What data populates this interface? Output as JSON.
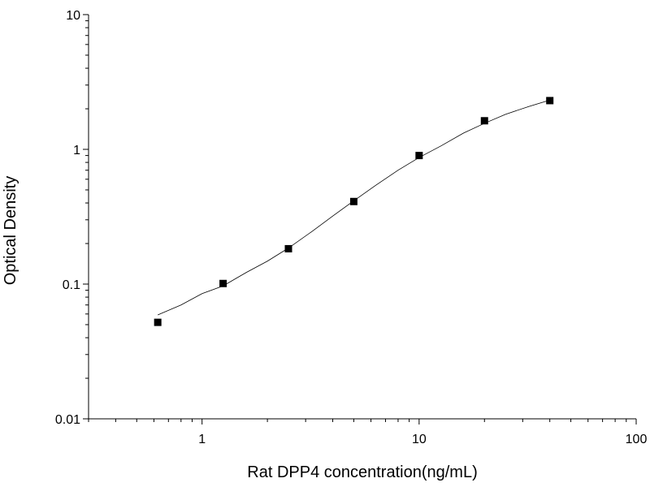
{
  "chart_data": {
    "type": "scatter",
    "title": "",
    "xlabel": "Rat DPP4 concentration(ng/mL)",
    "ylabel": "Optical Density",
    "xscale": "log",
    "yscale": "log",
    "xlim": [
      0.3,
      100
    ],
    "ylim": [
      0.01,
      10
    ],
    "x_ticks": [
      {
        "value": 1,
        "label": "1"
      },
      {
        "value": 10,
        "label": "10"
      },
      {
        "value": 100,
        "label": "100"
      }
    ],
    "y_ticks": [
      {
        "value": 0.01,
        "label": "0.01"
      },
      {
        "value": 0.1,
        "label": "0.1"
      },
      {
        "value": 1,
        "label": "1"
      },
      {
        "value": 10,
        "label": "10"
      }
    ],
    "grid": false,
    "series": [
      {
        "marker": "square",
        "color": "#000000",
        "points": [
          {
            "x": 0.625,
            "y": 0.052
          },
          {
            "x": 1.25,
            "y": 0.101
          },
          {
            "x": 2.5,
            "y": 0.183
          },
          {
            "x": 5,
            "y": 0.41
          },
          {
            "x": 10,
            "y": 0.9
          },
          {
            "x": 20,
            "y": 1.63
          },
          {
            "x": 40,
            "y": 2.3
          }
        ]
      }
    ],
    "fit_curve": {
      "color": "#000000",
      "points": [
        {
          "x": 0.625,
          "y": 0.059
        },
        {
          "x": 0.8,
          "y": 0.07
        },
        {
          "x": 1.0,
          "y": 0.085
        },
        {
          "x": 1.25,
          "y": 0.097
        },
        {
          "x": 1.6,
          "y": 0.122
        },
        {
          "x": 2.0,
          "y": 0.148
        },
        {
          "x": 2.5,
          "y": 0.185
        },
        {
          "x": 3.2,
          "y": 0.245
        },
        {
          "x": 4.0,
          "y": 0.32
        },
        {
          "x": 5.0,
          "y": 0.415
        },
        {
          "x": 6.3,
          "y": 0.54
        },
        {
          "x": 8.0,
          "y": 0.7
        },
        {
          "x": 10.0,
          "y": 0.87
        },
        {
          "x": 12.6,
          "y": 1.06
        },
        {
          "x": 16.0,
          "y": 1.32
        },
        {
          "x": 20.0,
          "y": 1.56
        },
        {
          "x": 25.0,
          "y": 1.82
        },
        {
          "x": 32.0,
          "y": 2.08
        },
        {
          "x": 40.0,
          "y": 2.32
        }
      ]
    }
  }
}
